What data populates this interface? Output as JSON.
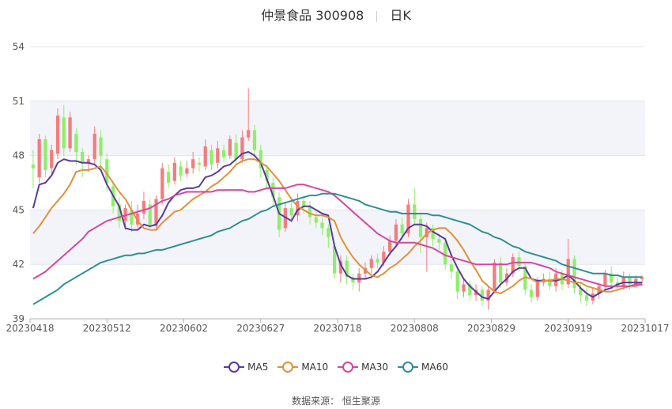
{
  "title": {
    "name": "仲景食品 300908",
    "period": "日K"
  },
  "legend": [
    {
      "name": "MA5",
      "color": "#5b3a9e"
    },
    {
      "name": "MA10",
      "color": "#e0913b"
    },
    {
      "name": "MA30",
      "color": "#d4479c"
    },
    {
      "name": "MA60",
      "color": "#2e8f94"
    }
  ],
  "source": "数据来源： 恒生聚源",
  "chart_data": {
    "type": "candlestick",
    "ylim": [
      39,
      54
    ],
    "yticks": [
      39,
      42,
      45,
      48,
      51,
      54
    ],
    "xticks": [
      "20230418",
      "20230512",
      "20230602",
      "20230627",
      "20230718",
      "20230808",
      "20230829",
      "20230919",
      "20231017"
    ],
    "grid": true,
    "up_color": "#f47c7c",
    "down_color": "#90ee6a",
    "series": [
      {
        "name": "MA5",
        "color": "#5b3a9e",
        "values": [
          45.1,
          46.4,
          46.5,
          46.9,
          47.6,
          47.8,
          47.7,
          47.7,
          47.6,
          47.6,
          47.5,
          47.2,
          46.4,
          45.8,
          45.2,
          44.0,
          43.9,
          43.9,
          44.2,
          44.1,
          44.2,
          44.7,
          45.4,
          45.8,
          46.1,
          46.2,
          46.2,
          46.3,
          46.8,
          46.9,
          47.1,
          47.4,
          47.5,
          47.8,
          48.1,
          48.2,
          48.0,
          47.6,
          46.7,
          45.8,
          44.8,
          44.6,
          44.4,
          45.0,
          45.2,
          45.2,
          45.0,
          44.8,
          44.7,
          43.0,
          42.0,
          41.4,
          41.2,
          41.2,
          41.2,
          41.3,
          41.6,
          42.1,
          42.6,
          43.0,
          43.5,
          44.0,
          44.2,
          44.2,
          44.1,
          43.8,
          43.6,
          43.4,
          42.5,
          41.8,
          41.2,
          40.8,
          40.5,
          40.2,
          40.1,
          40.5,
          40.9,
          41.2,
          41.6,
          41.8,
          41.8,
          41.2,
          41.1,
          41.1,
          41.1,
          41.1,
          41.2,
          41.4,
          41.1,
          40.7,
          40.4,
          40.2,
          40.4,
          40.6,
          40.7,
          40.9,
          41.0,
          41.0,
          41.0,
          41.0
        ]
      },
      {
        "name": "MA10",
        "color": "#e0913b",
        "values": [
          43.7,
          44.1,
          44.6,
          45.1,
          45.5,
          45.9,
          46.4,
          47.1,
          47.2,
          47.2,
          47.3,
          47.4,
          47.0,
          46.5,
          46.0,
          45.6,
          45.0,
          44.4,
          44.0,
          43.9,
          43.9,
          44.3,
          44.6,
          44.9,
          45.0,
          45.3,
          45.6,
          45.8,
          46.0,
          46.3,
          46.5,
          46.8,
          47.1,
          47.5,
          47.7,
          47.8,
          47.8,
          47.6,
          47.4,
          47.0,
          46.6,
          46.1,
          45.6,
          45.2,
          45.0,
          44.8,
          44.7,
          44.7,
          44.6,
          44.4,
          43.5,
          42.9,
          42.4,
          42.0,
          41.7,
          41.4,
          41.3,
          41.5,
          41.8,
          42.0,
          42.3,
          42.6,
          43.0,
          43.3,
          43.7,
          43.9,
          44.0,
          44.0,
          43.7,
          43.3,
          42.8,
          42.2,
          41.7,
          41.1,
          40.8,
          40.5,
          40.4,
          40.6,
          40.8,
          41.1,
          41.3,
          41.2,
          41.0,
          41.1,
          41.1,
          41.2,
          41.2,
          41.1,
          41.0,
          41.0,
          40.8,
          40.7,
          40.6,
          40.5,
          40.5,
          40.6,
          40.7,
          40.8,
          40.8,
          40.9
        ]
      },
      {
        "name": "MA30",
        "color": "#d4479c",
        "values": [
          41.2,
          41.4,
          41.6,
          41.9,
          42.2,
          42.5,
          42.8,
          43.1,
          43.4,
          43.8,
          44.0,
          44.2,
          44.4,
          44.5,
          44.6,
          44.7,
          44.8,
          44.9,
          45.0,
          45.1,
          45.3,
          45.5,
          45.6,
          45.8,
          45.9,
          46.0,
          46.0,
          46.0,
          46.0,
          46.0,
          46.1,
          46.1,
          46.1,
          46.1,
          46.1,
          46.0,
          46.0,
          46.1,
          46.2,
          46.2,
          46.2,
          46.2,
          46.3,
          46.4,
          46.4,
          46.3,
          46.2,
          46.1,
          46.0,
          45.8,
          45.5,
          45.2,
          44.9,
          44.6,
          44.3,
          44.0,
          43.7,
          43.5,
          43.3,
          43.2,
          43.2,
          43.2,
          43.2,
          43.1,
          43.0,
          42.9,
          42.7,
          42.5,
          42.4,
          42.3,
          42.2,
          42.1,
          42.0,
          42.0,
          42.0,
          42.0,
          42.0,
          42.0,
          42.1,
          42.1,
          42.1,
          42.1,
          42.0,
          41.9,
          41.8,
          41.6,
          41.5,
          41.4,
          41.3,
          41.2,
          41.1,
          41.0,
          40.9,
          40.8,
          40.8,
          40.8,
          40.8,
          40.8,
          40.9,
          40.9
        ]
      },
      {
        "name": "MA60",
        "color": "#2e8f94",
        "values": [
          39.8,
          40.0,
          40.2,
          40.4,
          40.6,
          40.9,
          41.1,
          41.3,
          41.5,
          41.7,
          41.9,
          42.1,
          42.2,
          42.3,
          42.4,
          42.5,
          42.5,
          42.6,
          42.6,
          42.7,
          42.8,
          42.8,
          42.9,
          43.0,
          43.1,
          43.2,
          43.3,
          43.4,
          43.5,
          43.6,
          43.8,
          43.9,
          44.0,
          44.2,
          44.4,
          44.5,
          44.7,
          44.9,
          45.0,
          45.2,
          45.3,
          45.4,
          45.5,
          45.6,
          45.7,
          45.8,
          45.8,
          45.9,
          45.9,
          45.9,
          45.8,
          45.7,
          45.6,
          45.5,
          45.3,
          45.2,
          45.1,
          45.0,
          44.9,
          44.9,
          44.8,
          44.8,
          44.8,
          44.8,
          44.8,
          44.7,
          44.7,
          44.6,
          44.5,
          44.4,
          44.3,
          44.2,
          44.0,
          43.8,
          43.7,
          43.5,
          43.4,
          43.2,
          43.0,
          42.9,
          42.7,
          42.6,
          42.5,
          42.4,
          42.3,
          42.2,
          42.0,
          41.9,
          41.8,
          41.7,
          41.6,
          41.5,
          41.5,
          41.5,
          41.4,
          41.4,
          41.3,
          41.3,
          41.3,
          41.3
        ]
      }
    ],
    "candles": [
      [
        47.5,
        47.3,
        48.3,
        46.2
      ],
      [
        46.8,
        48.9,
        49.2,
        46.5
      ],
      [
        48.9,
        47.2,
        49.1,
        46.8
      ],
      [
        47.3,
        48.3,
        48.6,
        47.0
      ],
      [
        48.1,
        50.2,
        50.6,
        47.8
      ],
      [
        50.1,
        48.4,
        50.8,
        48.0
      ],
      [
        48.4,
        50.1,
        50.4,
        48.2
      ],
      [
        49.2,
        48.2,
        49.5,
        47.5
      ],
      [
        48.2,
        47.6,
        48.4,
        46.8
      ],
      [
        47.6,
        47.8,
        48.0,
        47.1
      ],
      [
        47.8,
        49.2,
        49.6,
        47.5
      ],
      [
        49.0,
        48.0,
        49.4,
        47.2
      ],
      [
        47.8,
        46.5,
        48.1,
        46.0
      ],
      [
        46.3,
        45.2,
        46.6,
        44.8
      ],
      [
        45.3,
        44.4,
        45.7,
        44.0
      ],
      [
        44.4,
        45.1,
        45.3,
        43.9
      ],
      [
        45.0,
        44.2,
        45.5,
        43.8
      ],
      [
        44.2,
        44.8,
        45.3,
        44.0
      ],
      [
        44.8,
        45.5,
        46.0,
        44.5
      ],
      [
        45.3,
        44.2,
        45.6,
        44.0
      ],
      [
        44.1,
        45.6,
        45.8,
        43.9
      ],
      [
        45.6,
        47.3,
        47.6,
        45.3
      ],
      [
        47.1,
        46.5,
        47.5,
        46.2
      ],
      [
        46.6,
        47.6,
        47.9,
        46.4
      ],
      [
        47.4,
        46.9,
        47.7,
        46.6
      ],
      [
        47.0,
        47.3,
        47.7,
        46.8
      ],
      [
        47.3,
        47.8,
        48.2,
        47.0
      ],
      [
        47.6,
        47.5,
        47.9,
        47.1
      ],
      [
        47.4,
        48.5,
        48.9,
        47.2
      ],
      [
        48.3,
        47.5,
        48.6,
        47.2
      ],
      [
        47.6,
        48.4,
        48.8,
        47.3
      ],
      [
        48.3,
        47.9,
        48.6,
        47.6
      ],
      [
        48.0,
        48.9,
        49.1,
        47.8
      ],
      [
        48.7,
        47.8,
        49.2,
        47.5
      ],
      [
        47.8,
        49.0,
        49.4,
        47.6
      ],
      [
        49.0,
        49.4,
        51.7,
        48.8
      ],
      [
        49.4,
        48.3,
        49.7,
        47.9
      ],
      [
        48.3,
        47.3,
        48.6,
        46.8
      ],
      [
        47.2,
        46.6,
        47.5,
        46.2
      ],
      [
        46.5,
        45.7,
        46.8,
        45.2
      ],
      [
        45.7,
        43.9,
        46.0,
        43.5
      ],
      [
        44.0,
        45.1,
        45.4,
        43.8
      ],
      [
        45.1,
        44.7,
        45.5,
        44.3
      ],
      [
        44.7,
        45.5,
        45.9,
        44.4
      ],
      [
        45.5,
        45.2,
        45.8,
        44.8
      ],
      [
        45.2,
        44.6,
        45.5,
        44.2
      ],
      [
        44.6,
        44.3,
        44.9,
        44.0
      ],
      [
        44.3,
        44.0,
        44.6,
        43.6
      ],
      [
        44.0,
        43.5,
        44.2,
        42.9
      ],
      [
        43.0,
        41.5,
        43.2,
        41.2
      ],
      [
        41.5,
        42.2,
        42.5,
        41.0
      ],
      [
        42.2,
        41.3,
        42.5,
        40.9
      ],
      [
        41.3,
        41.0,
        41.5,
        40.6
      ],
      [
        41.0,
        41.5,
        41.8,
        40.5
      ],
      [
        41.5,
        41.8,
        42.1,
        41.2
      ],
      [
        41.8,
        42.3,
        42.5,
        41.5
      ],
      [
        42.3,
        42.1,
        42.6,
        41.8
      ],
      [
        42.1,
        42.7,
        43.0,
        41.9
      ],
      [
        42.7,
        43.3,
        43.6,
        42.5
      ],
      [
        43.3,
        44.2,
        44.5,
        43.0
      ],
      [
        44.2,
        43.7,
        44.6,
        43.3
      ],
      [
        43.7,
        45.3,
        45.6,
        43.5
      ],
      [
        45.3,
        44.5,
        46.2,
        44.2
      ],
      [
        44.5,
        43.5,
        44.8,
        42.6
      ],
      [
        43.5,
        44.0,
        44.3,
        41.6
      ],
      [
        44.0,
        43.4,
        44.2,
        43.0
      ],
      [
        43.4,
        43.2,
        43.7,
        42.8
      ],
      [
        43.2,
        42.0,
        43.5,
        41.7
      ],
      [
        42.0,
        41.6,
        42.3,
        41.2
      ],
      [
        41.6,
        40.5,
        41.9,
        40.1
      ],
      [
        40.5,
        40.9,
        41.2,
        40.2
      ],
      [
        40.9,
        40.3,
        41.1,
        40.0
      ],
      [
        40.3,
        40.6,
        40.9,
        40.0
      ],
      [
        40.6,
        40.0,
        40.8,
        39.7
      ],
      [
        40.0,
        40.6,
        40.8,
        39.5
      ],
      [
        40.6,
        42.1,
        42.3,
        40.4
      ],
      [
        42.1,
        41.0,
        42.4,
        40.7
      ],
      [
        41.0,
        41.5,
        41.8,
        40.8
      ],
      [
        41.5,
        42.4,
        42.6,
        41.3
      ],
      [
        42.4,
        41.9,
        42.7,
        41.6
      ],
      [
        41.9,
        40.6,
        42.1,
        40.3
      ],
      [
        40.6,
        40.2,
        40.9,
        39.9
      ],
      [
        40.2,
        41.0,
        41.3,
        40.0
      ],
      [
        41.0,
        41.2,
        41.5,
        40.8
      ],
      [
        41.2,
        40.8,
        41.6,
        40.6
      ],
      [
        40.8,
        41.5,
        41.8,
        40.5
      ],
      [
        41.5,
        40.9,
        41.7,
        40.6
      ],
      [
        40.9,
        42.3,
        43.4,
        40.7
      ],
      [
        42.3,
        40.7,
        42.5,
        40.4
      ],
      [
        40.7,
        40.3,
        41.0,
        39.9
      ],
      [
        40.3,
        40.0,
        40.7,
        39.7
      ],
      [
        40.0,
        40.4,
        40.7,
        39.8
      ],
      [
        40.4,
        40.8,
        41.0,
        40.1
      ],
      [
        40.8,
        41.5,
        41.7,
        40.5
      ],
      [
        41.5,
        41.0,
        41.9,
        40.7
      ],
      [
        41.0,
        40.8,
        41.3,
        40.5
      ],
      [
        40.8,
        41.3,
        41.6,
        40.6
      ],
      [
        41.3,
        40.9,
        41.5,
        40.6
      ],
      [
        40.9,
        41.2,
        41.4,
        40.7
      ],
      [
        41.2,
        41.3,
        41.4,
        40.8
      ]
    ]
  }
}
